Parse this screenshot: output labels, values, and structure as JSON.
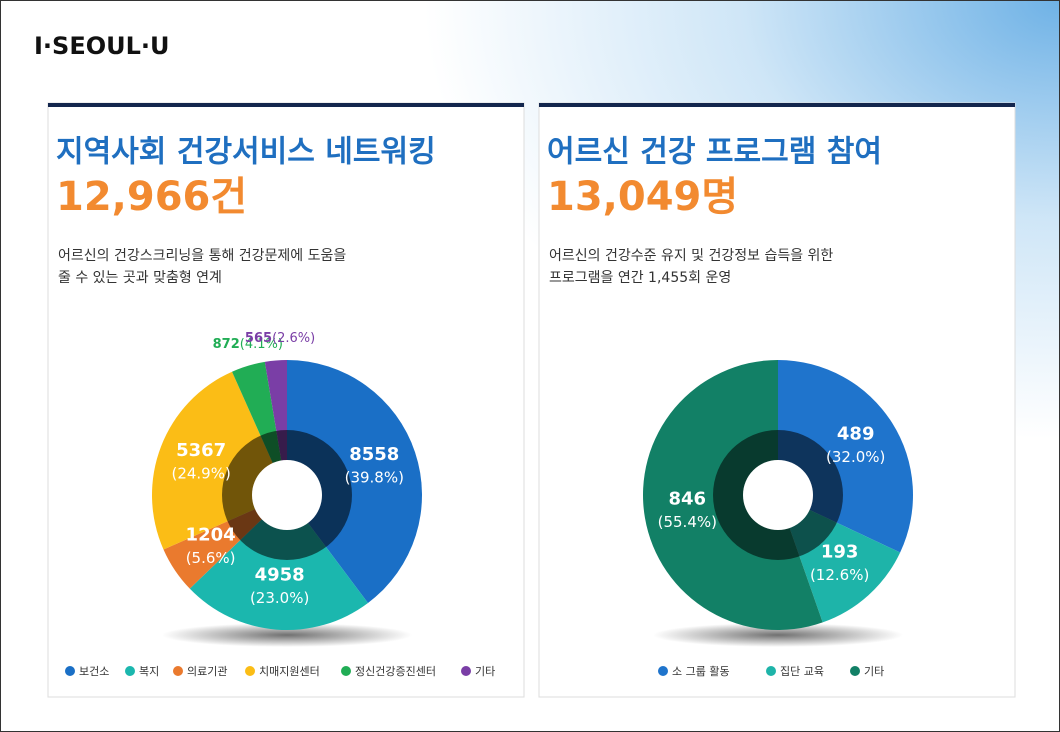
{
  "logo": "I·SEOUL·U",
  "chart_data": [
    {
      "type": "pie",
      "title": "지역사회 건강서비스 네트워킹",
      "headline": "12,966건",
      "description": [
        "어르신의 건강스크리닝을 통해 건강문제에 도움을",
        "줄 수 있는 곳과 맞춤형 연계"
      ],
      "categories": [
        "보건소",
        "복지",
        "의료기관",
        "치매지원센터",
        "정신건강증진센터",
        "기타"
      ],
      "values": [
        8558,
        4958,
        1204,
        5367,
        872,
        565
      ],
      "percent_labels": [
        "(39.8%)",
        "(23.0%)",
        "(5.6%)",
        "(24.9%)",
        "(4.1%)",
        "(2.6%)"
      ],
      "colors": [
        "#1a6fc6",
        "#1bb7ae",
        "#ea7a2e",
        "#fbbd16",
        "#21ad55",
        "#7a3ea6"
      ]
    },
    {
      "type": "pie",
      "title": "어르신 건강 프로그램 참여",
      "headline": "13,049명",
      "description": [
        "어르신의 건강수준 유지 및 건강정보 습득을 위한",
        "프로그램을 연간 1,455회 운영"
      ],
      "categories": [
        "소 그룹 활동",
        "집단 교육",
        "기타"
      ],
      "values": [
        489,
        193,
        846
      ],
      "percent_labels": [
        "(32.0%)",
        "(12.6%)",
        "(55.4%)"
      ],
      "colors": [
        "#1f74cc",
        "#1eb4a9",
        "#128066"
      ]
    }
  ]
}
